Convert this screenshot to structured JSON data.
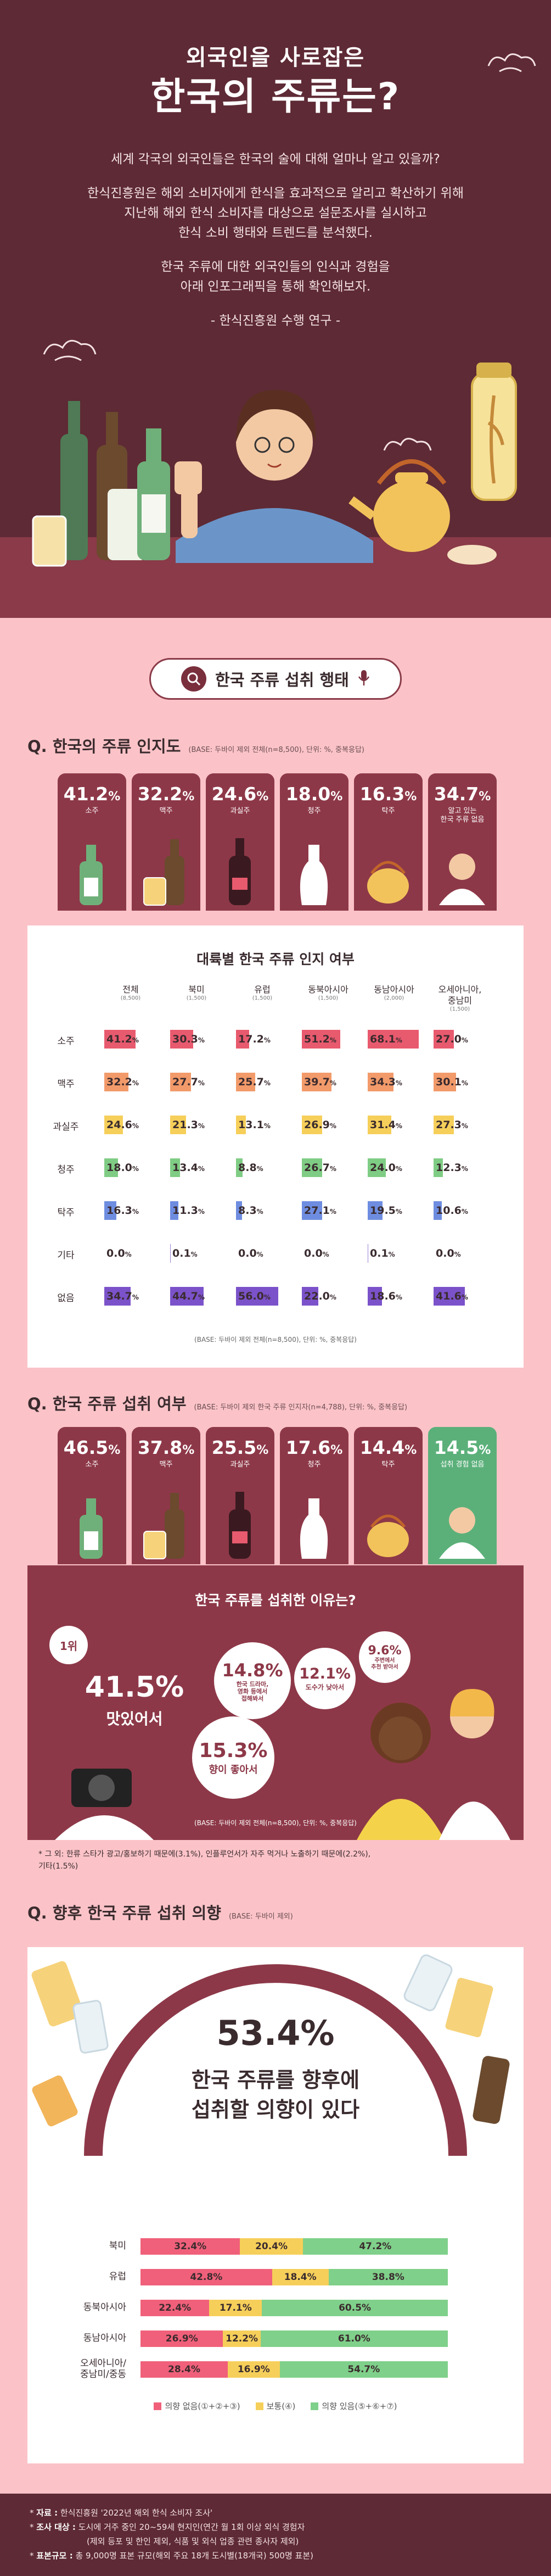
{
  "hero": {
    "title_small": "외국인을 사로잡은",
    "title_big": "한국의 주류는?",
    "intro": [
      "세계 각국의 외국인들은 한국의 술에 대해 얼마나 알고 있을까?",
      "한식진흥원은 해외 소비자에게 한식을 효과적으로 알리고 확산하기 위해",
      "지난해 해외 한식 소비자를 대상으로 설문조사를 실시하고",
      "한식 소비 행태와 트렌드를 분석했다.",
      "한국 주류에 대한 외국인들의 인식과 경험을",
      "아래 인포그래픽을 통해 확인해보자.",
      "- 한식진흥원 수행 연구 -"
    ]
  },
  "search_header": {
    "label": "한국 주류 섭취 행태"
  },
  "awareness": {
    "title": "Q. 한국의 주류 인지도",
    "base": "(BASE: 두바이 제외 전체(n=8,500), 단위: %, 중복응답)",
    "cards": [
      {
        "value": "41.2",
        "unit": "%",
        "label": "소주"
      },
      {
        "value": "32.2",
        "unit": "%",
        "label": "맥주"
      },
      {
        "value": "24.6",
        "unit": "%",
        "label": "과실주"
      },
      {
        "value": "18.0",
        "unit": "%",
        "label": "청주"
      },
      {
        "value": "16.3",
        "unit": "%",
        "label": "탁주"
      },
      {
        "value": "34.7",
        "unit": "%",
        "label": "알고 있는\n한국 주류 없음"
      }
    ],
    "table": {
      "title": "대륙별 한국 주류 인지 여부",
      "columns": [
        {
          "name": "전체",
          "n": "(8,500)"
        },
        {
          "name": "북미",
          "n": "(1,500)"
        },
        {
          "name": "유럽",
          "n": "(1,500)"
        },
        {
          "name": "동북아시아",
          "n": "(1,500)"
        },
        {
          "name": "동남아시아",
          "n": "(2,000)"
        },
        {
          "name": "오세아니아,\n중남미",
          "n": "(1,500)"
        }
      ],
      "rows": [
        {
          "label": "소주",
          "color": "#e85a6e",
          "values": [
            41.2,
            30.3,
            17.2,
            51.2,
            68.1,
            27.0
          ]
        },
        {
          "label": "맥주",
          "color": "#f29a6a",
          "values": [
            32.2,
            27.7,
            25.7,
            39.7,
            34.3,
            30.1
          ]
        },
        {
          "label": "과실주",
          "color": "#f6cf5a",
          "values": [
            24.6,
            21.3,
            13.1,
            26.9,
            31.4,
            27.3
          ]
        },
        {
          "label": "청주",
          "color": "#7fcc84",
          "values": [
            18.0,
            13.4,
            8.8,
            26.7,
            24.0,
            12.3
          ]
        },
        {
          "label": "탁주",
          "color": "#6e8de0",
          "values": [
            16.3,
            11.3,
            8.3,
            27.1,
            19.5,
            10.6
          ]
        },
        {
          "label": "기타",
          "color": "#9b7fd4",
          "values": [
            0.0,
            0.1,
            0.0,
            0.0,
            0.1,
            0.0
          ]
        },
        {
          "label": "없음",
          "color": "#7b52c9",
          "values": [
            34.7,
            44.7,
            56.0,
            22.0,
            18.6,
            41.6
          ]
        }
      ],
      "unit": "%",
      "base": "(BASE: 두바이 제외 전체(n=8,500), 단위: %, 중복응답)"
    }
  },
  "consumption": {
    "title": "Q. 한국 주류 섭취 여부",
    "base": "(BASE: 두바이 제외 한국 주류 인지자(n=4,788), 단위: %, 중복응답)",
    "cards": [
      {
        "value": "46.5",
        "unit": "%",
        "label": "소주"
      },
      {
        "value": "37.8",
        "unit": "%",
        "label": "맥주"
      },
      {
        "value": "25.5",
        "unit": "%",
        "label": "과실주"
      },
      {
        "value": "17.6",
        "unit": "%",
        "label": "청주"
      },
      {
        "value": "14.4",
        "unit": "%",
        "label": "탁주"
      },
      {
        "value": "14.5",
        "unit": "%",
        "label": "섭취 경험 없음"
      }
    ],
    "reasons": {
      "title": "한국 주류를 섭취한 이유는?",
      "rank_label": "1위",
      "top_value": "41.5%",
      "top_label": "맛있어서",
      "items": [
        {
          "value": "14.8%",
          "label": "한국 드라마,\n영화 등에서\n접해봐서"
        },
        {
          "value": "12.1%",
          "label": "도수가 낮아서"
        },
        {
          "value": "9.6%",
          "label": "주변에서\n추천 받아서"
        },
        {
          "value": "15.3%",
          "label": "향이 좋아서"
        }
      ],
      "base": "(BASE: 두바이 제외 전체(n=8,500), 단위: %, 중복응답)",
      "footnote": "* 그 외: 한류 스타가 광고/홍보하기 때문에(3.1%), 인플루언서가 자주 먹거나 노출하기 때문에(2.2%),\n기타(1.5%)"
    }
  },
  "intention": {
    "title": "Q. 향후 한국 주류 섭취 의향",
    "base": "(BASE: 두바이 제외)",
    "headline_value": "53.4%",
    "headline_msg_1": "한국 주류를 향후에",
    "headline_msg_2": "섭취할 의향이 있다",
    "legend": [
      {
        "label": "의향 없음(①+②+③)",
        "color": "#f0607a"
      },
      {
        "label": "보통(④)",
        "color": "#f6cf5a"
      },
      {
        "label": "의향 있음(⑤+⑥+⑦)",
        "color": "#7fd08a"
      }
    ],
    "rows": [
      {
        "label": "북미",
        "values": [
          32.4,
          20.4,
          47.2
        ]
      },
      {
        "label": "유럽",
        "values": [
          42.8,
          18.4,
          38.8
        ]
      },
      {
        "label": "동북아시아",
        "values": [
          22.4,
          17.1,
          60.5
        ]
      },
      {
        "label": "동남아시아",
        "values": [
          26.9,
          12.2,
          61.0
        ]
      },
      {
        "label": "오세아니아/\n중남미/중동",
        "values": [
          28.4,
          16.9,
          54.7
        ]
      }
    ]
  },
  "footer": {
    "source_label": "자료 :",
    "source": "한식진흥원 '2022년 해외 한식 소비자 조사'",
    "target_label": "조사 대상 :",
    "target": "도시에 거주 중인 20~59세 현지인(연간 월 1회 이상 외식 경험자",
    "target_2": "(제외 등포 및 한인 제외, 식품 및 외식 업종 관련 종사자 제외)",
    "size_label": "표본규모 :",
    "size": "총 9,000명 표본 규모(해외 주요 18개 도시별(18개국) 500명 표본)"
  }
}
